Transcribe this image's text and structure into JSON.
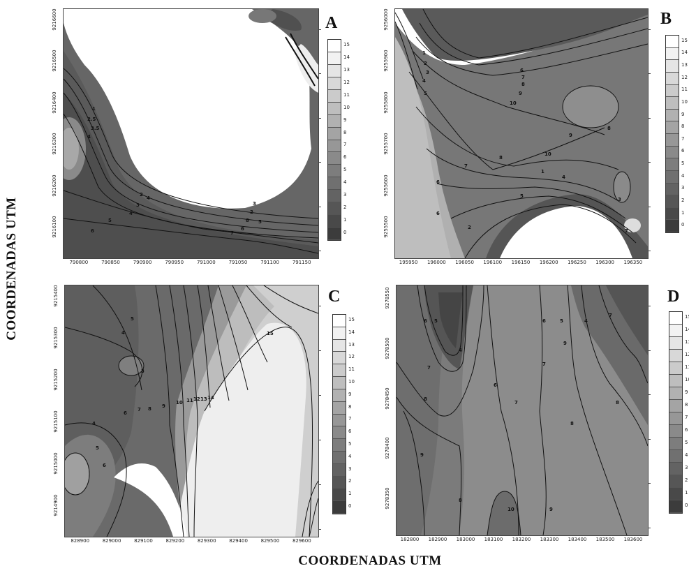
{
  "figure": {
    "y_axis_title": "COORDENADAS UTM",
    "x_axis_title": "COORDENADAS UTM"
  },
  "chart_data": [
    {
      "type": "heatmap",
      "panel": "A",
      "colorbar_ticks": [
        "0",
        "1",
        "2",
        "3",
        "4",
        "5",
        "6",
        "7",
        "8",
        "9",
        "10",
        "11",
        "12",
        "13",
        "14",
        "15"
      ],
      "y_ticks": [
        "9216100",
        "9216200",
        "9216300",
        "9216400",
        "9216500",
        "9216600"
      ],
      "x_ticks": [
        "790800",
        "790850",
        "790900",
        "790950",
        "791000",
        "791050",
        "791100",
        "791150"
      ],
      "contour_labels": [
        "1",
        "2.5",
        "3.5",
        "4",
        "2",
        "3",
        "4",
        "5",
        "6",
        "7",
        "8",
        "2",
        "3",
        "4",
        "5",
        "6"
      ]
    },
    {
      "type": "heatmap",
      "panel": "B",
      "colorbar_ticks": [
        "0",
        "1",
        "2",
        "3",
        "4",
        "5",
        "6",
        "7",
        "8",
        "9",
        "10",
        "11",
        "12",
        "13",
        "14",
        "15"
      ],
      "y_ticks": [
        "9255500",
        "9255600",
        "9255700",
        "9255800",
        "9255900",
        "9256000"
      ],
      "x_ticks": [
        "195950",
        "196000",
        "196050",
        "196100",
        "196150",
        "196200",
        "196250",
        "196300",
        "196350"
      ],
      "contour_labels": [
        "1",
        "2",
        "3",
        "4",
        "5",
        "6",
        "7",
        "8",
        "9",
        "10",
        "8",
        "9",
        "10",
        "8",
        "7",
        "6",
        "5",
        "4",
        "3",
        "2",
        "1",
        "6",
        "7"
      ]
    },
    {
      "type": "heatmap",
      "panel": "C",
      "colorbar_ticks": [
        "0",
        "1",
        "2",
        "3",
        "4",
        "5",
        "6",
        "7",
        "8",
        "9",
        "10",
        "11",
        "12",
        "13",
        "14",
        "15"
      ],
      "y_ticks": [
        "9214900",
        "9215000",
        "9215100",
        "9215200",
        "9215300",
        "9215400"
      ],
      "x_ticks": [
        "828900",
        "829000",
        "829100",
        "829200",
        "829300",
        "829400",
        "829500",
        "829600"
      ],
      "contour_labels": [
        "5",
        "4",
        "3",
        "6",
        "7",
        "8",
        "9",
        "10",
        "11",
        "12",
        "13",
        "14",
        "15",
        "4",
        "5",
        "6"
      ]
    },
    {
      "type": "heatmap",
      "panel": "D",
      "colorbar_ticks": [
        "0",
        "1",
        "2",
        "3",
        "4",
        "5",
        "6",
        "7",
        "8",
        "9",
        "10",
        "11",
        "12",
        "13",
        "14",
        "15"
      ],
      "y_ticks": [
        "9278350",
        "9278400",
        "9278450",
        "9278500",
        "9278550"
      ],
      "x_ticks": [
        "182800",
        "182900",
        "183000",
        "183100",
        "183200",
        "183300",
        "183400",
        "183500",
        "183600"
      ],
      "contour_labels": [
        "6",
        "5",
        "4",
        "7",
        "6",
        "8",
        "9",
        "8",
        "7",
        "6",
        "5",
        "4",
        "7",
        "8",
        "9",
        "10",
        "8",
        "9",
        "7"
      ]
    }
  ]
}
